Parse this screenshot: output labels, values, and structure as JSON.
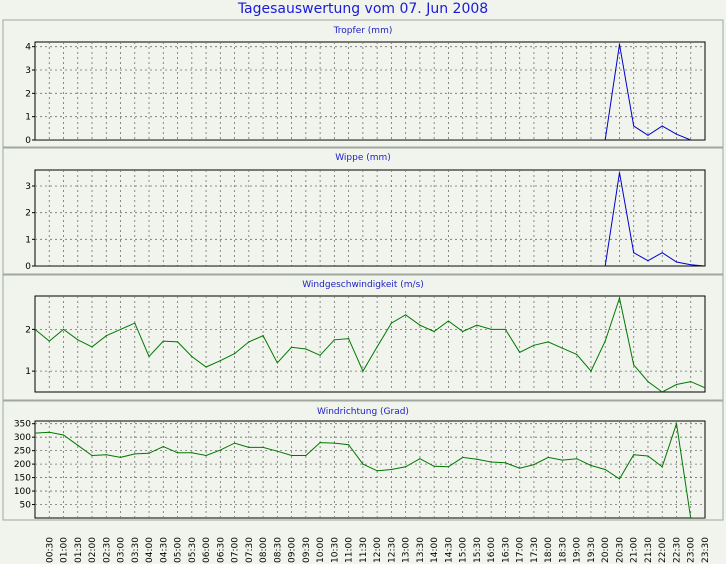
{
  "title": "Tagesauswertung vom 07. Jun 2008",
  "x_labels": [
    "00:30",
    "01:00",
    "01:30",
    "02:00",
    "02:30",
    "03:00",
    "03:30",
    "04:00",
    "04:30",
    "05:00",
    "05:30",
    "06:00",
    "06:30",
    "07:00",
    "07:30",
    "08:00",
    "08:30",
    "09:00",
    "09:30",
    "10:00",
    "10:30",
    "11:00",
    "11:30",
    "12:00",
    "12:30",
    "13:00",
    "13:30",
    "14:00",
    "14:30",
    "15:00",
    "15:30",
    "16:00",
    "16:30",
    "17:00",
    "17:30",
    "18:00",
    "18:30",
    "19:00",
    "19:30",
    "20:00",
    "20:30",
    "21:00",
    "21:30",
    "22:00",
    "22:30",
    "23:00",
    "23:30"
  ],
  "chart_data": [
    {
      "type": "line",
      "title": "Tropfer (mm)",
      "color": "#0000cc",
      "ylim": [
        0,
        4.2
      ],
      "yticks": [
        0,
        1,
        2,
        3,
        4
      ],
      "x": [
        "00:00",
        "00:30",
        "01:00",
        "01:30",
        "02:00",
        "02:30",
        "03:00",
        "03:30",
        "04:00",
        "04:30",
        "05:00",
        "05:30",
        "06:00",
        "06:30",
        "07:00",
        "07:30",
        "08:00",
        "08:30",
        "09:00",
        "09:30",
        "10:00",
        "10:30",
        "11:00",
        "11:30",
        "12:00",
        "12:30",
        "13:00",
        "13:30",
        "14:00",
        "14:30",
        "15:00",
        "15:30",
        "16:00",
        "16:30",
        "17:00",
        "17:30",
        "18:00",
        "18:30",
        "19:00",
        "19:30",
        "20:00",
        "20:30",
        "21:00",
        "21:30",
        "22:00",
        "22:30",
        "23:00",
        "23:30"
      ],
      "values": [
        0,
        0,
        0,
        0,
        0,
        0,
        0,
        0,
        0,
        0,
        0,
        0,
        0,
        0,
        0,
        0,
        0,
        0,
        0,
        0,
        0,
        0,
        0,
        0,
        0,
        0,
        0,
        0,
        0,
        0,
        0,
        0,
        0,
        0,
        0,
        0,
        0,
        0,
        0,
        0,
        0,
        4.1,
        0.6,
        0.2,
        0.6,
        0.25,
        0,
        0
      ]
    },
    {
      "type": "line",
      "title": "Wippe (mm)",
      "color": "#0000cc",
      "ylim": [
        0,
        3.6
      ],
      "yticks": [
        0,
        1,
        2,
        3
      ],
      "x": [
        "00:00",
        "00:30",
        "01:00",
        "01:30",
        "02:00",
        "02:30",
        "03:00",
        "03:30",
        "04:00",
        "04:30",
        "05:00",
        "05:30",
        "06:00",
        "06:30",
        "07:00",
        "07:30",
        "08:00",
        "08:30",
        "09:00",
        "09:30",
        "10:00",
        "10:30",
        "11:00",
        "11:30",
        "12:00",
        "12:30",
        "13:00",
        "13:30",
        "14:00",
        "14:30",
        "15:00",
        "15:30",
        "16:00",
        "16:30",
        "17:00",
        "17:30",
        "18:00",
        "18:30",
        "19:00",
        "19:30",
        "20:00",
        "20:30",
        "21:00",
        "21:30",
        "22:00",
        "22:30",
        "23:00",
        "23:30"
      ],
      "values": [
        0,
        0,
        0,
        0,
        0,
        0,
        0,
        0,
        0,
        0,
        0,
        0,
        0,
        0,
        0,
        0,
        0,
        0,
        0,
        0,
        0,
        0,
        0,
        0,
        0,
        0,
        0,
        0,
        0,
        0,
        0,
        0,
        0,
        0,
        0,
        0,
        0,
        0,
        0,
        0,
        0,
        3.5,
        0.5,
        0.2,
        0.5,
        0.15,
        0.05,
        0
      ]
    },
    {
      "type": "line",
      "title": "Windgeschwindigkeit (m/s)",
      "color": "#007800",
      "ylim": [
        0.5,
        2.8
      ],
      "yticks": [
        1,
        2
      ],
      "x": [
        "00:00",
        "00:30",
        "01:00",
        "01:30",
        "02:00",
        "02:30",
        "03:00",
        "03:30",
        "04:00",
        "04:30",
        "05:00",
        "05:30",
        "06:00",
        "06:30",
        "07:00",
        "07:30",
        "08:00",
        "08:30",
        "09:00",
        "09:30",
        "10:00",
        "10:30",
        "11:00",
        "11:30",
        "12:00",
        "12:30",
        "13:00",
        "13:30",
        "14:00",
        "14:30",
        "15:00",
        "15:30",
        "16:00",
        "16:30",
        "17:00",
        "17:30",
        "18:00",
        "18:30",
        "19:00",
        "19:30",
        "20:00",
        "20:30",
        "21:00",
        "21:30",
        "22:00",
        "22:30",
        "23:00",
        "23:30"
      ],
      "values": [
        2.0,
        1.72,
        2.0,
        1.75,
        1.58,
        1.85,
        2.0,
        2.15,
        1.35,
        1.72,
        1.7,
        1.35,
        1.1,
        1.25,
        1.42,
        1.7,
        1.85,
        1.2,
        1.57,
        1.53,
        1.38,
        1.75,
        1.78,
        1.0,
        1.58,
        2.15,
        2.35,
        2.1,
        1.95,
        2.2,
        1.95,
        2.1,
        2.0,
        2.0,
        1.45,
        1.62,
        1.7,
        1.55,
        1.4,
        1.0,
        1.72,
        2.75,
        1.15,
        0.75,
        0.5,
        0.68,
        0.75,
        0.6
      ]
    },
    {
      "type": "line",
      "title": "Windrichtung (Grad)",
      "color": "#007800",
      "ylim": [
        0,
        360
      ],
      "yticks": [
        50,
        100,
        150,
        200,
        250,
        300,
        350
      ],
      "x": [
        "00:00",
        "00:30",
        "01:00",
        "01:30",
        "02:00",
        "02:30",
        "03:00",
        "03:30",
        "04:00",
        "04:30",
        "05:00",
        "05:30",
        "06:00",
        "06:30",
        "07:00",
        "07:30",
        "08:00",
        "08:30",
        "09:00",
        "09:30",
        "10:00",
        "10:30",
        "11:00",
        "11:30",
        "12:00",
        "12:30",
        "13:00",
        "13:30",
        "14:00",
        "14:30",
        "15:00",
        "15:30",
        "16:00",
        "16:30",
        "17:00",
        "17:30",
        "18:00",
        "18:30",
        "19:00",
        "19:30",
        "20:00",
        "20:30",
        "21:00",
        "21:30",
        "22:00",
        "22:30",
        "23:00",
        "23:30"
      ],
      "values": [
        315,
        318,
        308,
        270,
        232,
        235,
        225,
        238,
        240,
        265,
        242,
        242,
        232,
        252,
        278,
        262,
        262,
        248,
        232,
        232,
        280,
        278,
        272,
        200,
        175,
        180,
        190,
        220,
        192,
        190,
        225,
        218,
        208,
        205,
        185,
        198,
        225,
        215,
        220,
        195,
        180,
        145,
        235,
        230,
        190,
        350,
        0,
        0
      ]
    }
  ]
}
